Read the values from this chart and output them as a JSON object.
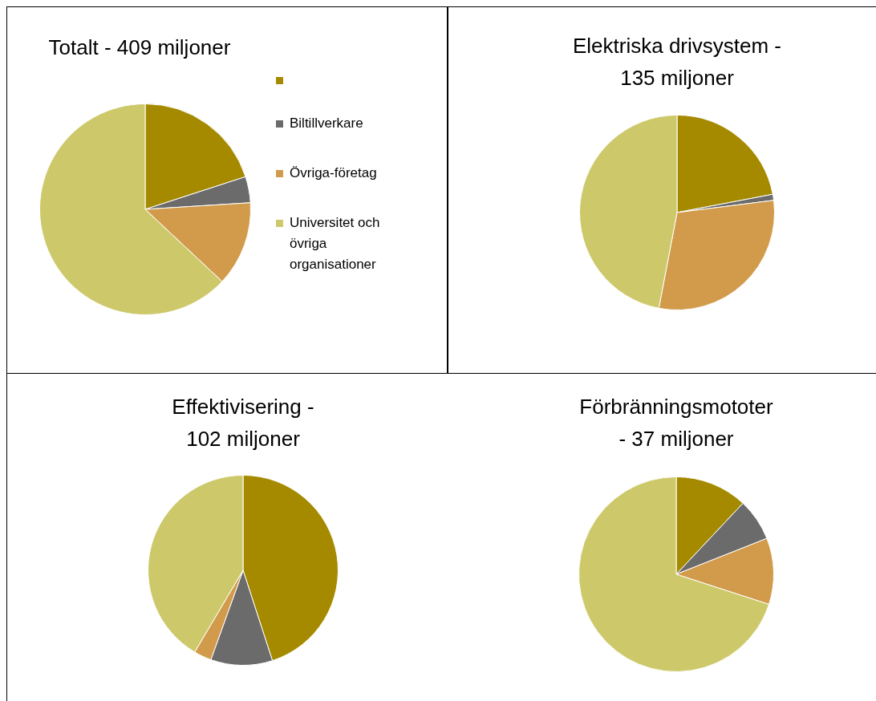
{
  "chart_data": [
    {
      "type": "pie",
      "title": "Totalt - 409 miljoner",
      "categories": [
        null,
        "Biltillverkare",
        "Övriga-företag",
        "Universitet och övriga organisationer"
      ],
      "values": [
        20,
        4,
        13,
        63
      ],
      "colors": [
        "#a58a00",
        "#6b6b6b",
        "#d29b4b",
        "#cdc96a"
      ],
      "legend": "right"
    },
    {
      "type": "pie",
      "title": "Elektriska drivsystem - 135 miljoner",
      "categories": [
        null,
        null,
        null,
        null
      ],
      "values": [
        22,
        1,
        30,
        47
      ],
      "colors": [
        "#a58a00",
        "#6b6b6b",
        "#d29b4b",
        "#cdc96a"
      ]
    },
    {
      "type": "pie",
      "title": "Effektivisering - 102 miljoner",
      "categories": [
        null,
        null,
        null,
        null
      ],
      "values": [
        45,
        10.5,
        3,
        41.5
      ],
      "colors": [
        "#a58a00",
        "#6b6b6b",
        "#d29b4b",
        "#cdc96a"
      ]
    },
    {
      "type": "pie",
      "title": "Förbränningsmototer - 37 miljoner",
      "categories": [
        null,
        null,
        null,
        null
      ],
      "values": [
        12,
        7,
        11,
        70
      ],
      "colors": [
        "#a58a00",
        "#6b6b6b",
        "#d29b4b",
        "#cdc96a"
      ]
    }
  ]
}
